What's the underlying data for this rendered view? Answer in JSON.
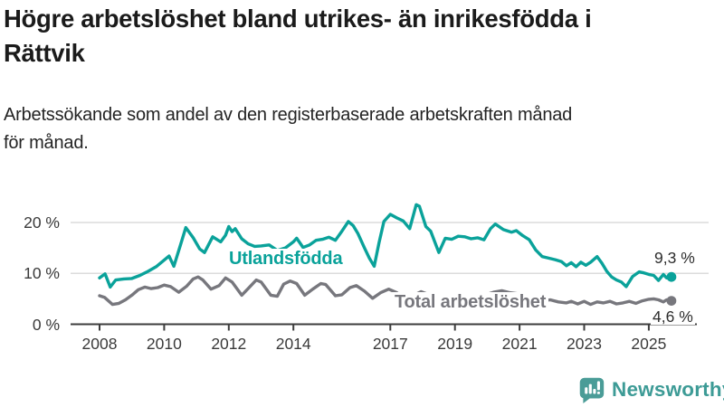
{
  "header": {
    "title_line1": "Högre arbetslöshet bland utrikes- än inrikesfödda i",
    "title_line2": "Rättvik",
    "subtitle_line1": "Arbetssökande som andel av den registerbaserade arbetskraften månad",
    "subtitle_line2": "för månad."
  },
  "chart_data": {
    "type": "line",
    "title": "Högre arbetslöshet bland utrikes- än inrikesfödda i Rättvik",
    "subtitle": "Arbetssökande som andel av den registerbaserade arbetskraften månad för månad.",
    "unit": "%",
    "grid": "horizontal-only",
    "style": {
      "grid_color": "#dcdcdc",
      "axis_color": "#3d3d3d",
      "tick_label_color": "#3a3a3a"
    },
    "x_axis": {
      "ticks": [
        2008,
        2010,
        2012,
        2014,
        2017,
        2019,
        2021,
        2023,
        2025
      ],
      "range": [
        2007.1,
        2026.9
      ]
    },
    "y_axis": {
      "ticks": [
        {
          "value": 0,
          "label": "0 %"
        },
        {
          "value": 10,
          "label": "10 %"
        },
        {
          "value": 20,
          "label": "20 %"
        }
      ],
      "range": [
        0,
        25
      ]
    },
    "series": [
      {
        "name": "Utlandsfödda",
        "label": "Utlandsfödda",
        "color": "#0aa29a",
        "end_label": "9,3 %",
        "end_value": 9.3,
        "points": [
          [
            2008,
            9.1
          ],
          [
            2008.17,
            9.9
          ],
          [
            2008.33,
            7.3
          ],
          [
            2008.5,
            8.7
          ],
          [
            2008.75,
            8.9
          ],
          [
            2009,
            9.0
          ],
          [
            2009.25,
            9.6
          ],
          [
            2009.5,
            10.4
          ],
          [
            2009.75,
            11.3
          ],
          [
            2010,
            12.6
          ],
          [
            2010.15,
            13.4
          ],
          [
            2010.3,
            11.4
          ],
          [
            2010.5,
            15.5
          ],
          [
            2010.67,
            19.0
          ],
          [
            2010.9,
            17.0
          ],
          [
            2011.1,
            14.8
          ],
          [
            2011.25,
            14.1
          ],
          [
            2011.5,
            17.2
          ],
          [
            2011.75,
            16.2
          ],
          [
            2011.9,
            17.5
          ],
          [
            2012,
            19.2
          ],
          [
            2012.1,
            18.2
          ],
          [
            2012.2,
            18.8
          ],
          [
            2012.4,
            16.8
          ],
          [
            2012.6,
            15.8
          ],
          [
            2012.8,
            15.3
          ],
          [
            2013,
            15.4
          ],
          [
            2013.25,
            15.6
          ],
          [
            2013.5,
            14.5
          ],
          [
            2013.75,
            15.0
          ],
          [
            2014,
            16.2
          ],
          [
            2014.1,
            16.9
          ],
          [
            2014.3,
            15.1
          ],
          [
            2014.5,
            15.6
          ],
          [
            2014.7,
            16.5
          ],
          [
            2014.9,
            16.7
          ],
          [
            2015.1,
            17.1
          ],
          [
            2015.3,
            16.5
          ],
          [
            2015.5,
            18.3
          ],
          [
            2015.7,
            20.2
          ],
          [
            2015.85,
            19.4
          ],
          [
            2016,
            17.8
          ],
          [
            2016.2,
            15.0
          ],
          [
            2016.35,
            13.0
          ],
          [
            2016.5,
            11.4
          ],
          [
            2016.65,
            16.0
          ],
          [
            2016.8,
            20.2
          ],
          [
            2017,
            21.6
          ],
          [
            2017.2,
            20.9
          ],
          [
            2017.4,
            20.3
          ],
          [
            2017.6,
            18.8
          ],
          [
            2017.8,
            23.5
          ],
          [
            2017.9,
            23.2
          ],
          [
            2018.1,
            19.2
          ],
          [
            2018.25,
            18.3
          ],
          [
            2018.5,
            14.1
          ],
          [
            2018.7,
            16.9
          ],
          [
            2018.9,
            16.7
          ],
          [
            2019.1,
            17.3
          ],
          [
            2019.3,
            17.2
          ],
          [
            2019.5,
            16.8
          ],
          [
            2019.7,
            17.0
          ],
          [
            2019.9,
            16.6
          ],
          [
            2020.1,
            18.8
          ],
          [
            2020.25,
            19.7
          ],
          [
            2020.5,
            18.6
          ],
          [
            2020.75,
            18.1
          ],
          [
            2020.9,
            18.4
          ],
          [
            2021.1,
            17.4
          ],
          [
            2021.3,
            16.6
          ],
          [
            2021.5,
            14.6
          ],
          [
            2021.7,
            13.3
          ],
          [
            2021.9,
            13.0
          ],
          [
            2022.1,
            12.7
          ],
          [
            2022.3,
            12.3
          ],
          [
            2022.45,
            11.5
          ],
          [
            2022.6,
            12.1
          ],
          [
            2022.75,
            11.3
          ],
          [
            2022.9,
            12.2
          ],
          [
            2023.05,
            11.6
          ],
          [
            2023.2,
            12.2
          ],
          [
            2023.4,
            13.3
          ],
          [
            2023.55,
            12.0
          ],
          [
            2023.7,
            10.4
          ],
          [
            2023.85,
            9.3
          ],
          [
            2024,
            8.7
          ],
          [
            2024.15,
            8.3
          ],
          [
            2024.3,
            7.4
          ],
          [
            2024.5,
            9.4
          ],
          [
            2024.7,
            10.3
          ],
          [
            2024.85,
            10.1
          ],
          [
            2025,
            9.8
          ],
          [
            2025.15,
            9.6
          ],
          [
            2025.3,
            8.6
          ],
          [
            2025.45,
            9.8
          ],
          [
            2025.55,
            9.1
          ],
          [
            2025.7,
            9.3
          ]
        ]
      },
      {
        "name": "Total arbetslöshet",
        "label": "Total arbetslöshet",
        "color": "#77777d",
        "end_label": "4,6 %",
        "end_value": 4.6,
        "points": [
          [
            2008,
            5.6
          ],
          [
            2008.15,
            5.3
          ],
          [
            2008.4,
            3.9
          ],
          [
            2008.6,
            4.1
          ],
          [
            2008.8,
            4.8
          ],
          [
            2009,
            5.7
          ],
          [
            2009.2,
            6.8
          ],
          [
            2009.4,
            7.3
          ],
          [
            2009.6,
            7.0
          ],
          [
            2009.8,
            7.2
          ],
          [
            2010,
            7.7
          ],
          [
            2010.2,
            7.4
          ],
          [
            2010.45,
            6.3
          ],
          [
            2010.7,
            7.5
          ],
          [
            2010.9,
            8.9
          ],
          [
            2011.05,
            9.3
          ],
          [
            2011.2,
            8.7
          ],
          [
            2011.45,
            6.9
          ],
          [
            2011.7,
            7.6
          ],
          [
            2011.9,
            9.1
          ],
          [
            2012.1,
            8.3
          ],
          [
            2012.4,
            5.7
          ],
          [
            2012.6,
            7.0
          ],
          [
            2012.85,
            8.7
          ],
          [
            2013,
            8.3
          ],
          [
            2013.3,
            5.7
          ],
          [
            2013.5,
            5.5
          ],
          [
            2013.7,
            7.9
          ],
          [
            2013.9,
            8.5
          ],
          [
            2014.1,
            8.0
          ],
          [
            2014.35,
            5.7
          ],
          [
            2014.6,
            6.9
          ],
          [
            2014.85,
            8.0
          ],
          [
            2015,
            7.8
          ],
          [
            2015.3,
            5.6
          ],
          [
            2015.5,
            5.8
          ],
          [
            2015.75,
            7.2
          ],
          [
            2015.95,
            7.6
          ],
          [
            2016.2,
            6.5
          ],
          [
            2016.45,
            5.1
          ],
          [
            2016.7,
            6.2
          ],
          [
            2016.95,
            6.9
          ],
          [
            2017.2,
            6.2
          ],
          [
            2017.45,
            4.9
          ],
          [
            2017.7,
            5.6
          ],
          [
            2017.95,
            6.4
          ],
          [
            2018.2,
            5.8
          ],
          [
            2018.45,
            4.6
          ],
          [
            2018.7,
            5.2
          ],
          [
            2018.95,
            6.0
          ],
          [
            2019.2,
            5.5
          ],
          [
            2019.45,
            4.5
          ],
          [
            2019.7,
            5.1
          ],
          [
            2019.95,
            5.8
          ],
          [
            2020.2,
            6.3
          ],
          [
            2020.45,
            6.6
          ],
          [
            2020.7,
            6.2
          ],
          [
            2020.95,
            6.0
          ],
          [
            2021.2,
            5.6
          ],
          [
            2021.45,
            4.9
          ],
          [
            2021.7,
            4.6
          ],
          [
            2021.95,
            4.8
          ],
          [
            2022.2,
            4.4
          ],
          [
            2022.45,
            4.2
          ],
          [
            2022.6,
            4.5
          ],
          [
            2022.8,
            4.0
          ],
          [
            2023,
            4.5
          ],
          [
            2023.2,
            3.9
          ],
          [
            2023.4,
            4.4
          ],
          [
            2023.6,
            4.2
          ],
          [
            2023.8,
            4.5
          ],
          [
            2024,
            4.0
          ],
          [
            2024.2,
            4.2
          ],
          [
            2024.4,
            4.5
          ],
          [
            2024.6,
            4.1
          ],
          [
            2024.8,
            4.6
          ],
          [
            2025,
            4.9
          ],
          [
            2025.15,
            5.0
          ],
          [
            2025.3,
            4.8
          ],
          [
            2025.45,
            4.4
          ],
          [
            2025.55,
            4.8
          ],
          [
            2025.7,
            4.6
          ]
        ]
      }
    ]
  },
  "logo": {
    "text": "Newsworthy",
    "text_color": "#3d9b96",
    "icon_color": "#4a9c97",
    "icon": "newsworthy-bar-chart-bubble-icon"
  }
}
